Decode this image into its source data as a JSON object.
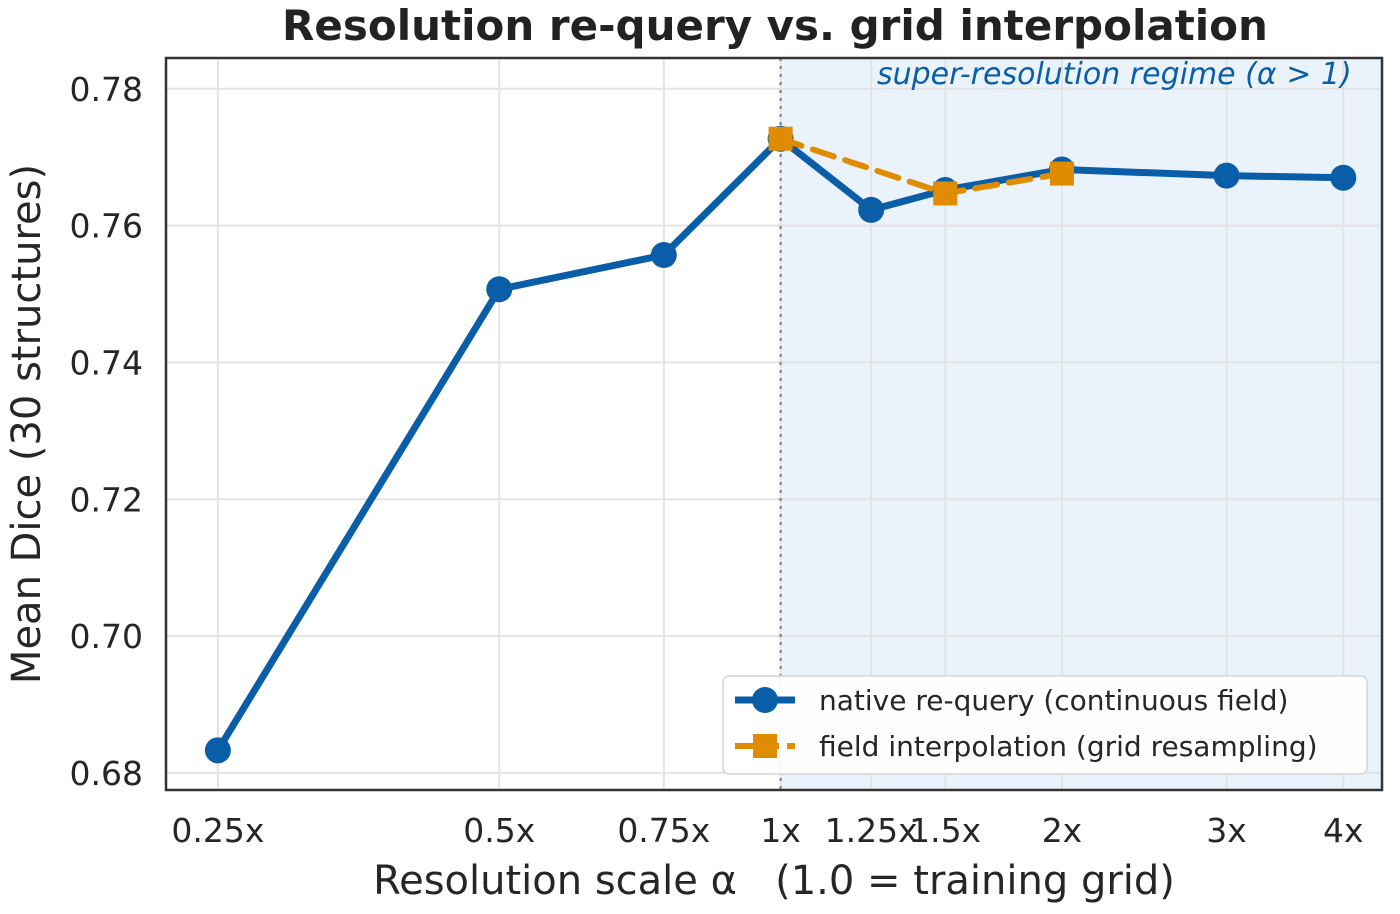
{
  "chart_data": {
    "type": "line",
    "title": "Resolution re-query vs. grid interpolation",
    "xlabel": "Resolution scale α   (1.0 = training grid)",
    "ylabel": "Mean Dice (30 structures)",
    "x_scale": "log",
    "xlim": [
      0.22,
      4.4
    ],
    "ylim": [
      0.6775,
      0.7845
    ],
    "x_ticks": [
      {
        "value": 0.25,
        "label": "0.25x"
      },
      {
        "value": 0.5,
        "label": "0.5x"
      },
      {
        "value": 0.75,
        "label": "0.75x"
      },
      {
        "value": 1.0,
        "label": "1x"
      },
      {
        "value": 1.25,
        "label": "1.25x"
      },
      {
        "value": 1.5,
        "label": "1.5x"
      },
      {
        "value": 2.0,
        "label": "2x"
      },
      {
        "value": 3.0,
        "label": "3x"
      },
      {
        "value": 4.0,
        "label": "4x"
      }
    ],
    "y_ticks": [
      {
        "value": 0.68,
        "label": "0.68"
      },
      {
        "value": 0.7,
        "label": "0.70"
      },
      {
        "value": 0.72,
        "label": "0.72"
      },
      {
        "value": 0.74,
        "label": "0.74"
      },
      {
        "value": 0.76,
        "label": "0.76"
      },
      {
        "value": 0.78,
        "label": "0.78"
      }
    ],
    "grid": true,
    "legend_position": "lower-right",
    "series": [
      {
        "name": "native re-query (continuous field)",
        "color": "#0a5ea8",
        "style": "solid",
        "marker": "circle",
        "x": [
          0.25,
          0.5,
          0.75,
          1.0,
          1.25,
          1.5,
          2.0,
          3.0,
          4.0
        ],
        "y": [
          0.6833,
          0.7507,
          0.7557,
          0.7727,
          0.7623,
          0.7652,
          0.7682,
          0.7673,
          0.767
        ]
      },
      {
        "name": "field interpolation (grid resampling)",
        "color": "#e08c00",
        "style": "dashed",
        "marker": "square",
        "x": [
          1.0,
          1.5,
          2.0
        ],
        "y": [
          0.7727,
          0.7647,
          0.7676
        ]
      }
    ],
    "shaded_region": {
      "x_from": 1.0,
      "x_to": 4.4,
      "color": "#eaf2fb",
      "label": "super-resolution regime (α > 1)",
      "label_color": "#0a5ea8"
    },
    "reference_line": {
      "x": 1.0,
      "style": "dotted",
      "color": "#8a8f96"
    }
  }
}
